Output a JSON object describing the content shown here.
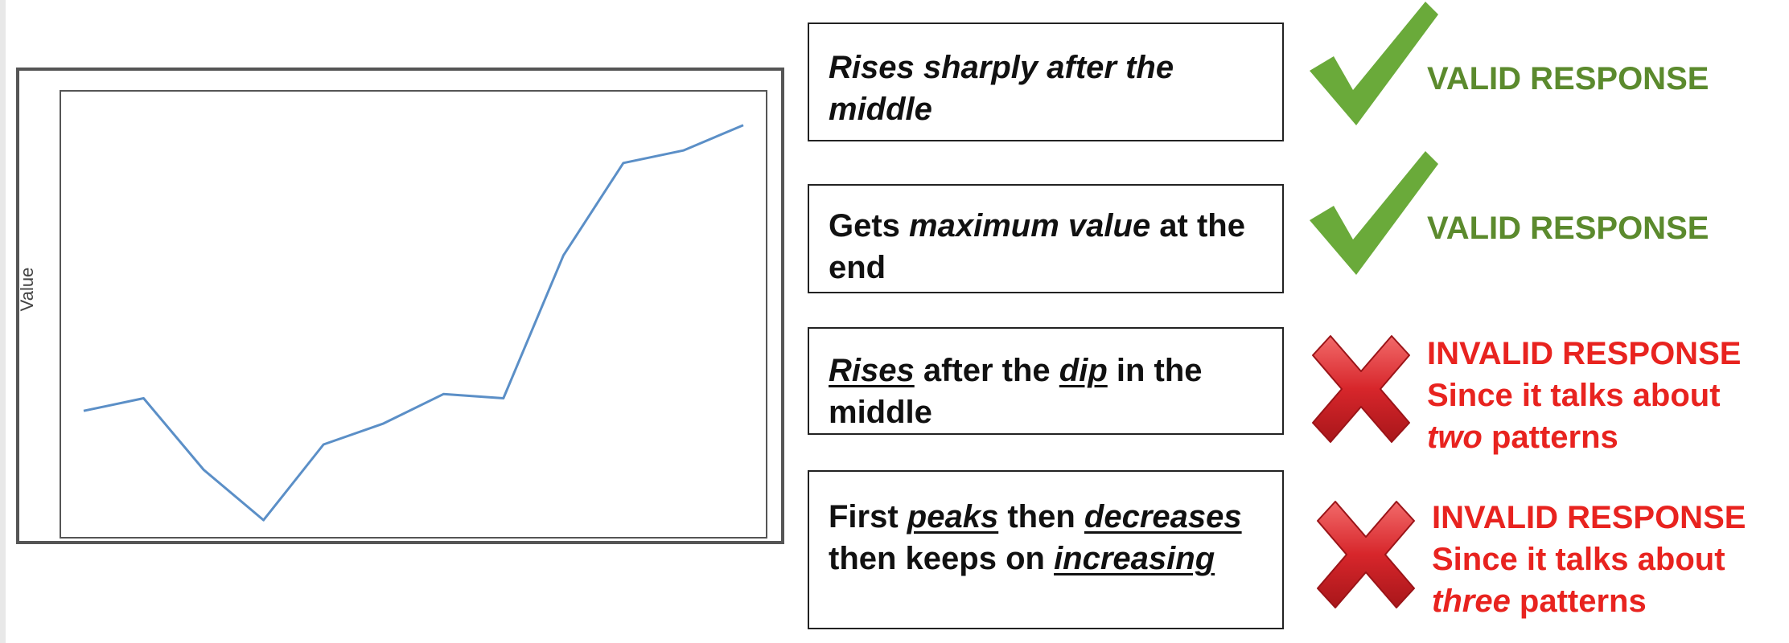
{
  "chart": {
    "ylabel": "Value"
  },
  "chart_data": {
    "type": "line",
    "ylabel": "Value",
    "xlabel": "",
    "series": [
      {
        "values": [
          3,
          3.3,
          1.6,
          0.4,
          2.2,
          2.7,
          3.4,
          3.3,
          6.7,
          8.9,
          9.2,
          9.8
        ]
      }
    ],
    "ylim": [
      0,
      10.6
    ],
    "grid": false,
    "color": "#5b8fc7"
  },
  "rows": [
    {
      "statement": {
        "parts": [
          {
            "text": "Rises sharply after the middle",
            "style": "italic"
          }
        ]
      },
      "verdict": {
        "type": "valid",
        "line1": "VALID RESPONSE",
        "reason_prefix": "",
        "reason_em": "",
        "reason_suffix": ""
      },
      "icon": "checkmark-icon"
    },
    {
      "statement": {
        "parts": [
          {
            "text": "Gets ",
            "style": "plain"
          },
          {
            "text": "maximum value",
            "style": "italic"
          },
          {
            "text": " at the end",
            "style": "plain"
          }
        ]
      },
      "verdict": {
        "type": "valid",
        "line1": "VALID RESPONSE",
        "reason_prefix": "",
        "reason_em": "",
        "reason_suffix": ""
      },
      "icon": "checkmark-icon"
    },
    {
      "statement": {
        "parts": [
          {
            "text": "Rises",
            "style": "italic-underline"
          },
          {
            "text": " after the ",
            "style": "plain"
          },
          {
            "text": "dip",
            "style": "italic-underline"
          },
          {
            "text": " in the middle",
            "style": "plain"
          }
        ]
      },
      "verdict": {
        "type": "invalid",
        "line1": "INVALID RESPONSE",
        "reason_prefix": "Since it talks about ",
        "reason_em": "two",
        "reason_suffix": " patterns"
      },
      "icon": "cross-icon"
    },
    {
      "statement": {
        "parts": [
          {
            "text": "First ",
            "style": "plain"
          },
          {
            "text": "peaks",
            "style": "italic-underline"
          },
          {
            "text": " then ",
            "style": "plain"
          },
          {
            "text": "decreases",
            "style": "italic-underline"
          },
          {
            "text": " then keeps on ",
            "style": "plain"
          },
          {
            "text": "increasing",
            "style": "italic-underline"
          }
        ]
      },
      "verdict": {
        "type": "invalid",
        "line1": "INVALID RESPONSE",
        "reason_prefix": "Since it talks about ",
        "reason_em": "three",
        "reason_suffix": " patterns"
      },
      "icon": "cross-icon"
    }
  ],
  "colors": {
    "valid": "#5b8a2d",
    "check": "#6aaa3a",
    "invalid": "#e8231f",
    "cross": "#d7262b"
  }
}
